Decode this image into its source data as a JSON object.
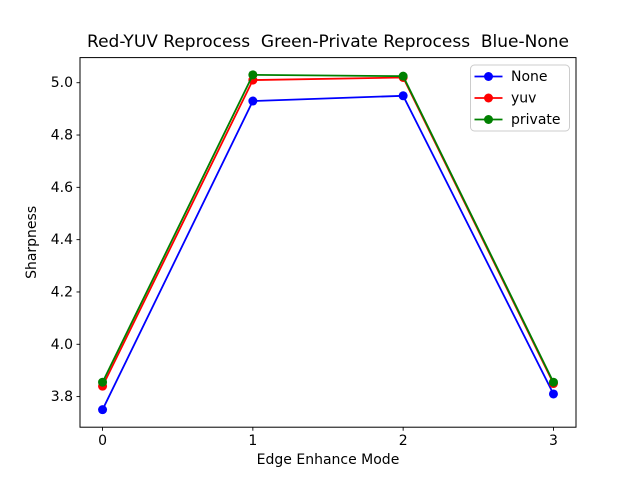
{
  "chart_data": {
    "type": "line",
    "title": "Red-YUV Reprocess  Green-Private Reprocess  Blue-None",
    "xlabel": "Edge Enhance Mode",
    "ylabel": "Sharpness",
    "x": [
      0,
      1,
      2,
      3
    ],
    "series": [
      {
        "name": "None",
        "color": "#0000ff",
        "marker": "circle",
        "values": [
          3.75,
          4.93,
          4.95,
          3.81
        ]
      },
      {
        "name": "yuv",
        "color": "#ff0000",
        "marker": "circle",
        "values": [
          3.84,
          5.01,
          5.02,
          3.85
        ]
      },
      {
        "name": "private",
        "color": "#008000",
        "marker": "circle",
        "values": [
          3.855,
          5.03,
          5.025,
          3.855
        ]
      }
    ],
    "xlim": [
      -0.15,
      3.15
    ],
    "ylim": [
      3.683,
      5.096
    ],
    "xticks": {
      "values": [
        0,
        1,
        2,
        3
      ],
      "labels": [
        "0",
        "1",
        "2",
        "3"
      ]
    },
    "yticks": {
      "values": [
        3.8,
        4.0,
        4.2,
        4.4,
        4.6,
        4.8,
        5.0
      ],
      "labels": [
        "3.8",
        "4.0",
        "4.2",
        "4.4",
        "4.6",
        "4.8",
        "5.0"
      ]
    },
    "grid": false,
    "legend": {
      "position": "upper right",
      "entries": [
        "None",
        "yuv",
        "private"
      ]
    },
    "colors": {
      "background": "#ffffff",
      "axes": "#000000",
      "legend_border": "#cccccc"
    }
  }
}
